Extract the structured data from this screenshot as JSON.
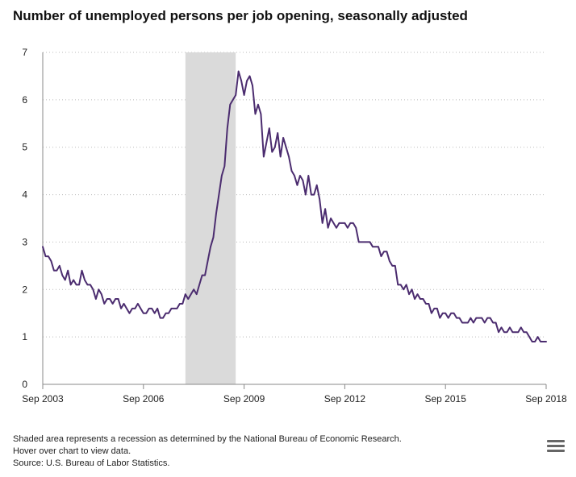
{
  "header": {
    "title": "Number of unemployed persons per job opening, seasonally adjusted"
  },
  "footnotes": {
    "recession_note": "Shaded area represents a recession as determined by the National Bureau of Economic Research.",
    "hover_note": "Hover over chart to view data.",
    "source": "Source: U.S. Bureau of Labor Statistics."
  },
  "menu": {
    "icon": "hamburger-menu-icon"
  },
  "colors": {
    "line": "#4b2c6f",
    "recession_band": "#dadada",
    "gridline": "#bbbbbb",
    "axis": "#888888"
  },
  "chart_data": {
    "type": "line",
    "title": "Number of unemployed persons per job opening, seasonally adjusted",
    "xlabel": "",
    "ylabel": "",
    "x_ticks": [
      "Sep 2003",
      "Sep 2006",
      "Sep 2009",
      "Sep 2012",
      "Sep 2015",
      "Sep 2018"
    ],
    "y_ticks": [
      0,
      1,
      2,
      3,
      4,
      5,
      6,
      7
    ],
    "xlim": [
      "Sep 2003",
      "Sep 2018"
    ],
    "ylim": [
      0,
      7
    ],
    "grid": "horizontal dotted",
    "legend": "none",
    "recession": {
      "start": "Dec 2007",
      "end": "Jun 2009"
    },
    "series": [
      {
        "x": [
          "Sep 2003",
          "Oct 2003",
          "Nov 2003",
          "Dec 2003",
          "Jan 2004",
          "Feb 2004",
          "Mar 2004",
          "Apr 2004",
          "May 2004",
          "Jun 2004",
          "Jul 2004",
          "Aug 2004",
          "Sep 2004",
          "Oct 2004",
          "Nov 2004",
          "Dec 2004",
          "Jan 2005",
          "Feb 2005",
          "Mar 2005",
          "Apr 2005",
          "May 2005",
          "Jun 2005",
          "Jul 2005",
          "Aug 2005",
          "Sep 2005",
          "Oct 2005",
          "Nov 2005",
          "Dec 2005",
          "Jan 2006",
          "Feb 2006",
          "Mar 2006",
          "Apr 2006",
          "May 2006",
          "Jun 2006",
          "Jul 2006",
          "Aug 2006",
          "Sep 2006",
          "Oct 2006",
          "Nov 2006",
          "Dec 2006",
          "Jan 2007",
          "Feb 2007",
          "Mar 2007",
          "Apr 2007",
          "May 2007",
          "Jun 2007",
          "Jul 2007",
          "Aug 2007",
          "Sep 2007",
          "Oct 2007",
          "Nov 2007",
          "Dec 2007",
          "Jan 2008",
          "Feb 2008",
          "Mar 2008",
          "Apr 2008",
          "May 2008",
          "Jun 2008",
          "Jul 2008",
          "Aug 2008",
          "Sep 2008",
          "Oct 2008",
          "Nov 2008",
          "Dec 2008",
          "Jan 2009",
          "Feb 2009",
          "Mar 2009",
          "Apr 2009",
          "May 2009",
          "Jun 2009",
          "Jul 2009",
          "Aug 2009",
          "Sep 2009",
          "Oct 2009",
          "Nov 2009",
          "Dec 2009",
          "Jan 2010",
          "Feb 2010",
          "Mar 2010",
          "Apr 2010",
          "May 2010",
          "Jun 2010",
          "Jul 2010",
          "Aug 2010",
          "Sep 2010",
          "Oct 2010",
          "Nov 2010",
          "Dec 2010",
          "Jan 2011",
          "Feb 2011",
          "Mar 2011",
          "Apr 2011",
          "May 2011",
          "Jun 2011",
          "Jul 2011",
          "Aug 2011",
          "Sep 2011",
          "Oct 2011",
          "Nov 2011",
          "Dec 2011",
          "Jan 2012",
          "Feb 2012",
          "Mar 2012",
          "Apr 2012",
          "May 2012",
          "Jun 2012",
          "Jul 2012",
          "Aug 2012",
          "Sep 2012",
          "Oct 2012",
          "Nov 2012",
          "Dec 2012",
          "Jan 2013",
          "Feb 2013",
          "Mar 2013",
          "Apr 2013",
          "May 2013",
          "Jun 2013",
          "Jul 2013",
          "Aug 2013",
          "Sep 2013",
          "Oct 2013",
          "Nov 2013",
          "Dec 2013",
          "Jan 2014",
          "Feb 2014",
          "Mar 2014",
          "Apr 2014",
          "May 2014",
          "Jun 2014",
          "Jul 2014",
          "Aug 2014",
          "Sep 2014",
          "Oct 2014",
          "Nov 2014",
          "Dec 2014",
          "Jan 2015",
          "Feb 2015",
          "Mar 2015",
          "Apr 2015",
          "May 2015",
          "Jun 2015",
          "Jul 2015",
          "Aug 2015",
          "Sep 2015",
          "Oct 2015",
          "Nov 2015",
          "Dec 2015",
          "Jan 2016",
          "Feb 2016",
          "Mar 2016",
          "Apr 2016",
          "May 2016",
          "Jun 2016",
          "Jul 2016",
          "Aug 2016",
          "Sep 2016",
          "Oct 2016",
          "Nov 2016",
          "Dec 2016",
          "Jan 2017",
          "Feb 2017",
          "Mar 2017",
          "Apr 2017",
          "May 2017",
          "Jun 2017",
          "Jul 2017",
          "Aug 2017",
          "Sep 2017",
          "Oct 2017",
          "Nov 2017",
          "Dec 2017",
          "Jan 2018",
          "Feb 2018",
          "Mar 2018",
          "Apr 2018",
          "May 2018",
          "Jun 2018",
          "Jul 2018",
          "Aug 2018",
          "Sep 2018"
        ],
        "values": [
          2.9,
          2.7,
          2.7,
          2.6,
          2.4,
          2.4,
          2.5,
          2.3,
          2.2,
          2.4,
          2.1,
          2.2,
          2.1,
          2.1,
          2.4,
          2.2,
          2.1,
          2.1,
          2.0,
          1.8,
          2.0,
          1.9,
          1.7,
          1.8,
          1.8,
          1.7,
          1.8,
          1.8,
          1.6,
          1.7,
          1.6,
          1.5,
          1.6,
          1.6,
          1.7,
          1.6,
          1.5,
          1.5,
          1.6,
          1.6,
          1.5,
          1.6,
          1.4,
          1.4,
          1.5,
          1.5,
          1.6,
          1.6,
          1.6,
          1.7,
          1.7,
          1.9,
          1.8,
          1.9,
          2.0,
          1.9,
          2.1,
          2.3,
          2.3,
          2.6,
          2.9,
          3.1,
          3.6,
          4.0,
          4.4,
          4.6,
          5.4,
          5.9,
          6.0,
          6.1,
          6.6,
          6.4,
          6.1,
          6.4,
          6.5,
          6.3,
          5.7,
          5.9,
          5.7,
          4.8,
          5.1,
          5.4,
          4.9,
          5.0,
          5.3,
          4.8,
          5.2,
          5.0,
          4.8,
          4.5,
          4.4,
          4.2,
          4.4,
          4.3,
          4.0,
          4.4,
          4.0,
          4.0,
          4.2,
          3.9,
          3.4,
          3.7,
          3.3,
          3.5,
          3.4,
          3.3,
          3.4,
          3.4,
          3.4,
          3.3,
          3.4,
          3.4,
          3.3,
          3.0,
          3.0,
          3.0,
          3.0,
          3.0,
          2.9,
          2.9,
          2.9,
          2.7,
          2.8,
          2.8,
          2.6,
          2.5,
          2.5,
          2.1,
          2.1,
          2.0,
          2.1,
          1.9,
          2.0,
          1.8,
          1.9,
          1.8,
          1.8,
          1.7,
          1.7,
          1.5,
          1.6,
          1.6,
          1.4,
          1.5,
          1.5,
          1.4,
          1.5,
          1.5,
          1.4,
          1.4,
          1.3,
          1.3,
          1.3,
          1.4,
          1.3,
          1.4,
          1.4,
          1.4,
          1.3,
          1.4,
          1.4,
          1.3,
          1.3,
          1.1,
          1.2,
          1.1,
          1.1,
          1.2,
          1.1,
          1.1,
          1.1,
          1.2,
          1.1,
          1.1,
          1.0,
          0.9,
          0.9,
          1.0,
          0.9,
          0.9,
          0.9
        ]
      }
    ]
  }
}
